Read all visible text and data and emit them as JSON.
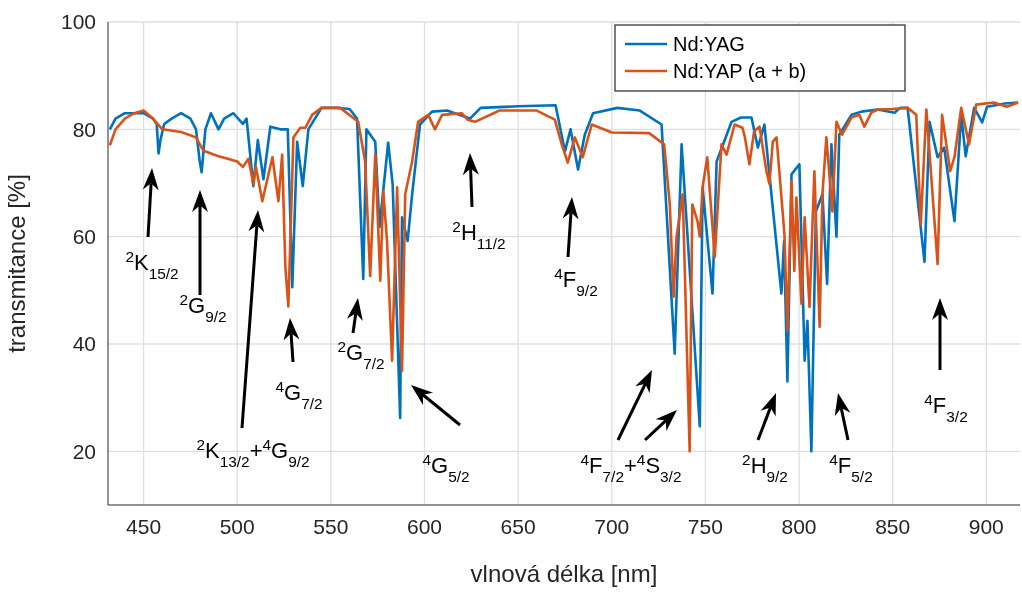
{
  "chart_data": {
    "type": "line",
    "xlabel": "vlnová délka [nm]",
    "ylabel": "transmitance [%]",
    "xlim": [
      431,
      918
    ],
    "ylim": [
      10,
      100
    ],
    "xticks": [
      450,
      500,
      550,
      600,
      650,
      700,
      750,
      800,
      850,
      900
    ],
    "yticks": [
      20,
      40,
      60,
      80,
      100
    ],
    "grid": true,
    "legend": "top right",
    "line_style": "solid",
    "marker": "none",
    "series": [
      {
        "name": "Nd:YAG",
        "color": "#0072bd",
        "x": [
          432,
          435,
          440,
          450,
          455,
          457,
          458,
          459,
          461,
          465,
          470,
          475,
          478,
          480,
          481,
          483,
          486,
          490,
          493,
          498,
          503,
          505,
          508.6,
          511,
          514,
          517.7,
          523,
          527,
          529.4,
          532,
          535,
          538,
          545,
          553,
          560,
          564,
          567.3,
          569,
          573.7,
          576,
          580.6,
          583,
          587,
          588,
          591,
          593.4,
          597.6,
          604,
          612,
          624.3,
          630,
          650,
          670,
          675,
          678,
          682,
          685.6,
          690,
          703,
          715,
          726.6,
          733.6,
          737.3,
          747,
          748.5,
          753.8,
          756,
          764,
          769,
          774.6,
          778,
          781.5,
          790.6,
          792,
          793.8,
          796,
          800.2,
          803,
          804.5,
          806.6,
          809,
          812.5,
          815,
          817.3,
          820,
          821.5,
          828,
          833.3,
          842,
          851,
          854,
          858,
          867,
          869.7,
          874,
          877.5,
          883,
          886.6,
          889,
          893.5,
          897.8,
          900.4,
          910,
          917
        ],
        "values": [
          80,
          82,
          83,
          83,
          82,
          81,
          75.5,
          78,
          81,
          82,
          83,
          82,
          80,
          74,
          72,
          80,
          83,
          80,
          82,
          83,
          81,
          82,
          69.4,
          78,
          70.7,
          80.5,
          80,
          80,
          50.6,
          77.7,
          69.4,
          80,
          84,
          84,
          83.8,
          82,
          52.1,
          80,
          77.7,
          61.8,
          77.5,
          69.8,
          26.2,
          63.6,
          59.2,
          67.9,
          80.9,
          83.3,
          83.5,
          82,
          84,
          84.3,
          84.5,
          75.9,
          80,
          72.5,
          79,
          83,
          84,
          83.5,
          80.9,
          38.2,
          77.2,
          24.7,
          69.2,
          49.4,
          74,
          81.4,
          82.2,
          82.2,
          76.6,
          80.9,
          49.4,
          59.2,
          33,
          71.6,
          73.5,
          36.9,
          44.3,
          20,
          64.7,
          67.9,
          51.2,
          77.2,
          60,
          79,
          82.7,
          83.3,
          83.7,
          83.1,
          84,
          84,
          55.3,
          81.4,
          74.8,
          76.6,
          62.9,
          82.7,
          75,
          84,
          81.3,
          84.2,
          84.8,
          85
        ]
      },
      {
        "name": "Nd:YAP (a + b)",
        "color": "#d95319",
        "x": [
          432,
          435,
          440,
          445,
          450,
          455,
          460,
          470,
          478,
          482,
          490,
          495,
          500,
          503,
          506,
          508.6,
          510,
          513.4,
          518.8,
          522,
          524,
          525.7,
          527.3,
          530,
          533.7,
          536.4,
          540,
          545,
          555,
          564.6,
          568.3,
          571,
          573.7,
          576.4,
          578,
          580,
          582.7,
          585.4,
          588,
          589.7,
          593.4,
          596.6,
          602,
          605.6,
          609.4,
          620,
          623,
          627,
          640,
          660,
          669.6,
          673.3,
          676.5,
          680.3,
          684.5,
          689.3,
          700,
          720,
          728,
          731,
          733,
          734.6,
          737.9,
          741.6,
          743,
          745.8,
          747,
          748.5,
          751,
          755,
          758.6,
          761.3,
          765.6,
          769.8,
          771,
          773.5,
          776,
          778.9,
          782.6,
          784.2,
          786,
          788,
          792.2,
          793.8,
          796,
          797.5,
          798.6,
          801.3,
          803,
          805.6,
          808.2,
          811,
          812.5,
          814.6,
          817.8,
          820,
          823,
          828,
          832.2,
          834.9,
          838.6,
          842,
          850,
          858,
          862.6,
          865,
          868,
          874,
          876.4,
          880.7,
          883,
          886.6,
          890.8,
          894.6,
          904,
          911,
          917
        ],
        "values": [
          77,
          80,
          82,
          83,
          83.5,
          82,
          80,
          79.5,
          78.5,
          76,
          75,
          74.5,
          74,
          73,
          74.5,
          69.8,
          73,
          66.6,
          74.8,
          66.6,
          75.3,
          54.4,
          47,
          78.5,
          80.3,
          80.3,
          82.7,
          84,
          84,
          81.4,
          74,
          52.7,
          75.3,
          51.8,
          68.5,
          59.2,
          36.9,
          69.2,
          35,
          67.9,
          74,
          81.4,
          82.7,
          80,
          82.7,
          83,
          81.8,
          81.4,
          83.5,
          83.5,
          81.8,
          77.2,
          73.8,
          78.5,
          74.8,
          80.9,
          79.4,
          79.3,
          77.2,
          66,
          48.8,
          60,
          67.9,
          20,
          66,
          62.9,
          60,
          69.2,
          74.8,
          56.2,
          77.2,
          75.3,
          80.9,
          80.3,
          78.7,
          73.5,
          79.6,
          80.5,
          72.2,
          69.8,
          77.7,
          78.5,
          60.5,
          42.5,
          70.3,
          53.6,
          67.3,
          47.5,
          63.6,
          46.9,
          72.2,
          43.2,
          67.9,
          78.5,
          64.7,
          81.4,
          79,
          82.2,
          82.7,
          80.5,
          83.1,
          83.7,
          83.8,
          84,
          82.7,
          62.3,
          83.7,
          54.9,
          82.7,
          72.2,
          74.8,
          84,
          77.2,
          84.6,
          85,
          84.2,
          85
        ]
      }
    ],
    "annotations": [
      "$^{2}$K$_{15/2}$",
      "$^{2}$G$_{9/2}$",
      "$^{2}$K$_{13/2}$+$^{4}$G$_{9/2}$",
      "$^{4}$G$_{7/2}$",
      "$^{2}$G$_{7/2}$",
      "$^{4}$G$_{5/2}$",
      "$^{2}$H$_{11/2}$",
      "$^{4}$F$_{9/2}$",
      "$^{4}$F$_{7/2}$+$^{4}$S$_{3/2}$",
      "$^{2}$H$_{9/2}$",
      "$^{4}$F$_{5/2}$",
      "$^{4}$F$_{3/2}$"
    ]
  }
}
